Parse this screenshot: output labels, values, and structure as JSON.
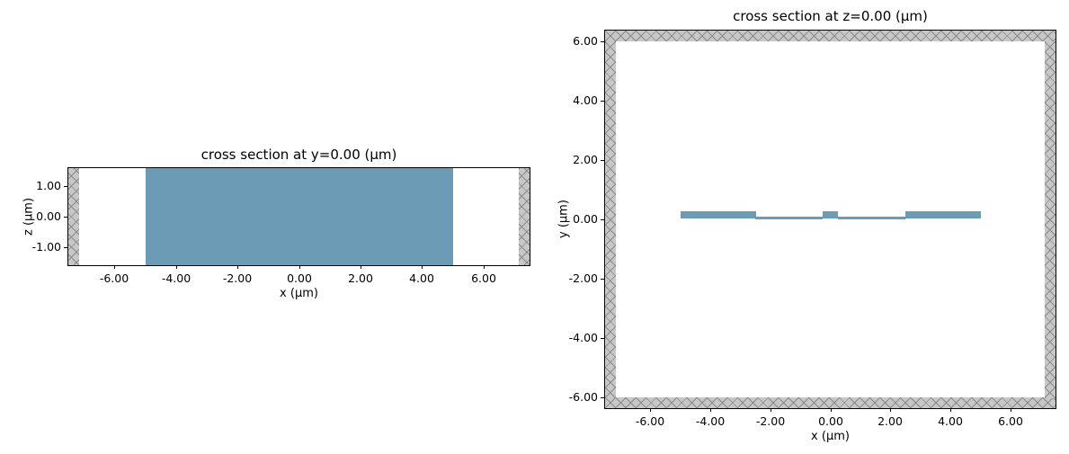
{
  "figure": {
    "medium_color": "#6b9bb5",
    "pml_base": "#c7c7c7",
    "pml_hatch": "#8a8a8a",
    "axes_edge": "#000000",
    "background": "#ffffff"
  },
  "chart_data": [
    {
      "type": "cross-section",
      "title": "cross section at y=0.00 (μm)",
      "xlabel": "x (μm)",
      "ylabel": "z (μm)",
      "xlim": [
        -7.5,
        7.5
      ],
      "ylim": [
        -1.6,
        1.6
      ],
      "grid": false,
      "legend": "none",
      "xticks": [
        -6,
        -4,
        -2,
        0,
        2,
        4,
        6
      ],
      "xtick_labels": [
        "-6.00",
        "-4.00",
        "-2.00",
        "0.00",
        "2.00",
        "4.00",
        "6.00"
      ],
      "yticks": [
        1,
        0,
        -1
      ],
      "ytick_labels": [
        "1.00",
        "0.00",
        "-1.00"
      ],
      "structures": [
        {
          "x0": -5.0,
          "x1": 5.0,
          "y0": -1.6,
          "y1": 1.6
        }
      ],
      "pml_rects": [
        {
          "x0": -7.5,
          "x1": -7.15,
          "y0": -1.6,
          "y1": 1.6
        },
        {
          "x0": 7.15,
          "x1": 7.5,
          "y0": -1.6,
          "y1": 1.6
        }
      ]
    },
    {
      "type": "cross-section",
      "title": "cross section at z=0.00 (μm)",
      "xlabel": "x (μm)",
      "ylabel": "y (μm)",
      "xlim": [
        -7.5,
        7.5
      ],
      "ylim": [
        -6.35,
        6.35
      ],
      "grid": false,
      "legend": "none",
      "xticks": [
        -6,
        -4,
        -2,
        0,
        2,
        4,
        6
      ],
      "xtick_labels": [
        "-6.00",
        "-4.00",
        "-2.00",
        "0.00",
        "2.00",
        "4.00",
        "6.00"
      ],
      "yticks": [
        6,
        4,
        2,
        0,
        -2,
        -4,
        -6
      ],
      "ytick_labels": [
        "6.00",
        "4.00",
        "2.00",
        "0.00",
        "-2.00",
        "-4.00",
        "-6.00"
      ],
      "structures": [
        {
          "x0": -5.0,
          "x1": -2.5,
          "y0": 0.02,
          "y1": 0.26
        },
        {
          "x0": -2.5,
          "x1": -0.25,
          "y0": 0.0,
          "y1": 0.08
        },
        {
          "x0": -0.25,
          "x1": 0.25,
          "y0": 0.02,
          "y1": 0.26
        },
        {
          "x0": 0.25,
          "x1": 2.5,
          "y0": 0.0,
          "y1": 0.08
        },
        {
          "x0": 2.5,
          "x1": 5.0,
          "y0": 0.02,
          "y1": 0.26
        }
      ],
      "pml_rects": [
        {
          "x0": -7.5,
          "x1": 7.5,
          "y0": 6.0,
          "y1": 6.35
        },
        {
          "x0": -7.5,
          "x1": 7.5,
          "y0": -6.35,
          "y1": -6.0
        },
        {
          "x0": -7.5,
          "x1": -7.15,
          "y0": -6.0,
          "y1": 6.0
        },
        {
          "x0": 7.15,
          "x1": 7.5,
          "y0": -6.0,
          "y1": 6.0
        }
      ]
    }
  ]
}
